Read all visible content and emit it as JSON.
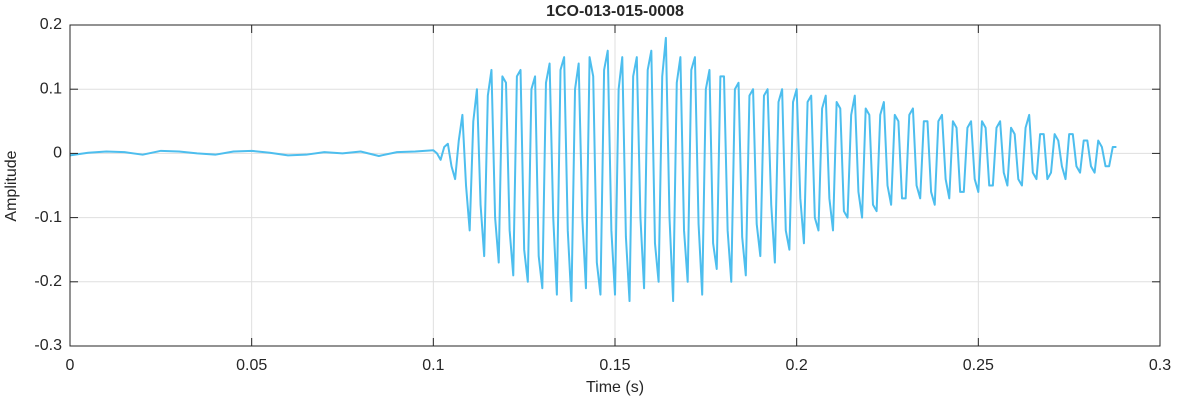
{
  "chart_data": {
    "type": "line",
    "title": "1CO-013-015-0008",
    "xlabel": "Time (s)",
    "ylabel": "Amplitude",
    "color": "#4DBEEE",
    "grid": true,
    "xlim": [
      0,
      0.3
    ],
    "xticks": [
      0,
      0.05,
      0.1,
      0.15,
      0.2,
      0.25,
      0.3
    ],
    "ylim": [
      -0.3,
      0.2
    ],
    "yticks": [
      -0.3,
      -0.2,
      -0.1,
      0,
      0.1,
      0.2
    ],
    "x": [
      0,
      0.005,
      0.01,
      0.015,
      0.02,
      0.025,
      0.03,
      0.035,
      0.04,
      0.045,
      0.05,
      0.055,
      0.06,
      0.065,
      0.07,
      0.075,
      0.08,
      0.085,
      0.09,
      0.095,
      0.1,
      0.101,
      0.102,
      0.103,
      0.104,
      0.105,
      0.106,
      0.107,
      0.108,
      0.109,
      0.11,
      0.111,
      0.112,
      0.113,
      0.114,
      0.115,
      0.116,
      0.117,
      0.118,
      0.119,
      0.12,
      0.121,
      0.122,
      0.123,
      0.124,
      0.125,
      0.126,
      0.127,
      0.128,
      0.129,
      0.13,
      0.131,
      0.132,
      0.133,
      0.134,
      0.135,
      0.136,
      0.137,
      0.138,
      0.139,
      0.14,
      0.141,
      0.142,
      0.143,
      0.144,
      0.145,
      0.146,
      0.147,
      0.148,
      0.149,
      0.15,
      0.151,
      0.152,
      0.153,
      0.154,
      0.155,
      0.156,
      0.157,
      0.158,
      0.159,
      0.16,
      0.161,
      0.162,
      0.163,
      0.164,
      0.165,
      0.166,
      0.167,
      0.168,
      0.169,
      0.17,
      0.171,
      0.172,
      0.173,
      0.174,
      0.175,
      0.176,
      0.177,
      0.178,
      0.179,
      0.18,
      0.181,
      0.182,
      0.183,
      0.184,
      0.185,
      0.186,
      0.187,
      0.188,
      0.189,
      0.19,
      0.191,
      0.192,
      0.193,
      0.194,
      0.195,
      0.196,
      0.197,
      0.198,
      0.199,
      0.2,
      0.201,
      0.202,
      0.203,
      0.204,
      0.205,
      0.206,
      0.207,
      0.208,
      0.209,
      0.21,
      0.211,
      0.212,
      0.213,
      0.214,
      0.215,
      0.216,
      0.217,
      0.218,
      0.219,
      0.22,
      0.221,
      0.222,
      0.223,
      0.224,
      0.225,
      0.226,
      0.227,
      0.228,
      0.229,
      0.23,
      0.231,
      0.232,
      0.233,
      0.234,
      0.235,
      0.236,
      0.237,
      0.238,
      0.239,
      0.24,
      0.241,
      0.242,
      0.243,
      0.244,
      0.245,
      0.246,
      0.247,
      0.248,
      0.249,
      0.25,
      0.251,
      0.252,
      0.253,
      0.254,
      0.255,
      0.256,
      0.257,
      0.258,
      0.259,
      0.26,
      0.261,
      0.262,
      0.263,
      0.264,
      0.265,
      0.266,
      0.267,
      0.268,
      0.269,
      0.27,
      0.271,
      0.272,
      0.273,
      0.274,
      0.275,
      0.276,
      0.277,
      0.278,
      0.279,
      0.28,
      0.281,
      0.282,
      0.283,
      0.284,
      0.285,
      0.286,
      0.287,
      0.288
    ],
    "values": [
      -0.003,
      0.001,
      0.003,
      0.002,
      -0.002,
      0.004,
      0.003,
      0,
      -0.002,
      0.003,
      0.004,
      0.001,
      -0.003,
      -0.002,
      0.002,
      0,
      0.003,
      -0.004,
      0.002,
      0.003,
      0.005,
      0,
      -0.01,
      0.01,
      0.015,
      -0.02,
      -0.04,
      0.02,
      0.06,
      -0.05,
      -0.12,
      0.05,
      0.1,
      -0.08,
      -0.16,
      0.09,
      0.13,
      -0.1,
      -0.17,
      0.12,
      0.11,
      -0.12,
      -0.19,
      0.12,
      0.13,
      -0.15,
      -0.2,
      0.1,
      0.12,
      -0.16,
      -0.21,
      0.11,
      0.14,
      -0.1,
      -0.22,
      0.13,
      0.15,
      -0.12,
      -0.23,
      0.1,
      0.14,
      -0.1,
      -0.21,
      0.15,
      0.12,
      -0.17,
      -0.22,
      0.13,
      0.16,
      -0.12,
      -0.22,
      0.1,
      0.15,
      -0.13,
      -0.23,
      0.12,
      0.15,
      -0.1,
      -0.21,
      0.13,
      0.16,
      -0.14,
      -0.2,
      0.12,
      0.18,
      -0.1,
      -0.23,
      0.11,
      0.15,
      -0.12,
      -0.2,
      0.13,
      0.15,
      -0.11,
      -0.22,
      0.1,
      0.13,
      -0.14,
      -0.18,
      0.12,
      0.12,
      -0.12,
      -0.2,
      0.1,
      0.11,
      -0.13,
      -0.19,
      0.09,
      0.1,
      -0.11,
      -0.16,
      0.09,
      0.1,
      -0.08,
      -0.17,
      0.08,
      0.1,
      -0.12,
      -0.15,
      0.08,
      0.1,
      -0.07,
      -0.14,
      0.08,
      0.09,
      -0.1,
      -0.12,
      0.07,
      0.09,
      -0.07,
      -0.12,
      0.08,
      0.07,
      -0.09,
      -0.1,
      0.06,
      0.09,
      -0.06,
      -0.1,
      0.07,
      0.06,
      -0.08,
      -0.09,
      0.06,
      0.08,
      -0.05,
      -0.08,
      0.06,
      0.05,
      -0.07,
      -0.07,
      0.06,
      0.07,
      -0.05,
      -0.07,
      0.05,
      0.05,
      -0.06,
      -0.08,
      0.05,
      0.06,
      -0.04,
      -0.07,
      0.05,
      0.04,
      -0.06,
      -0.06,
      0.04,
      0.05,
      -0.04,
      -0.06,
      0.05,
      0.04,
      -0.05,
      -0.05,
      0.04,
      0.05,
      -0.03,
      -0.05,
      0.04,
      0.03,
      -0.04,
      -0.05,
      0.04,
      0.06,
      -0.03,
      -0.04,
      0.03,
      0.03,
      -0.04,
      -0.03,
      0.03,
      0.02,
      -0.02,
      -0.04,
      0.03,
      0.03,
      -0.02,
      -0.03,
      0.02,
      0.02,
      -0.02,
      -0.03,
      0.02,
      0.01,
      -0.02,
      -0.02,
      0.01,
      0.01
    ]
  }
}
